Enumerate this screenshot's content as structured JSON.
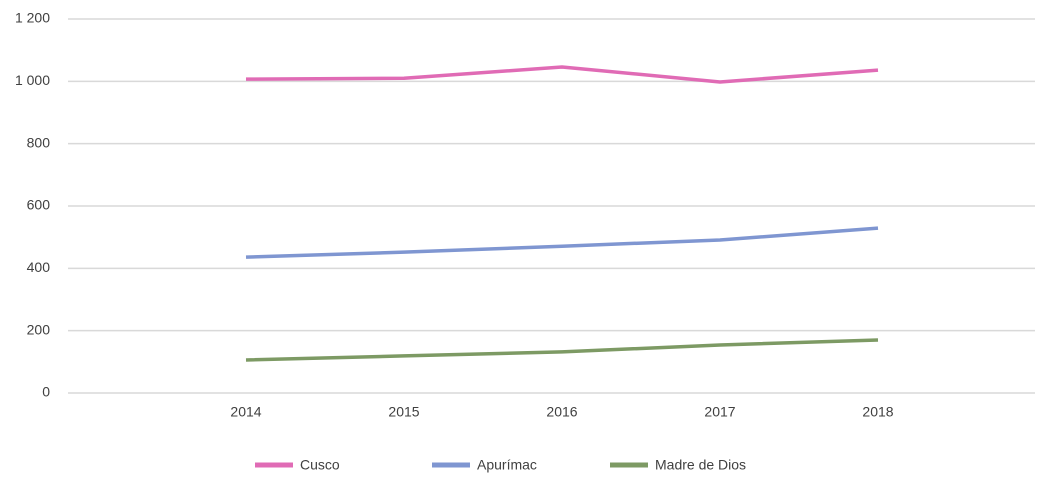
{
  "chart_data": {
    "type": "line",
    "categories": [
      "2014",
      "2015",
      "2016",
      "2017",
      "2018"
    ],
    "series": [
      {
        "name": "Cusco",
        "color": "#e06bb5",
        "values": [
          1007,
          1010,
          1046,
          998,
          1036
        ]
      },
      {
        "name": "Apurímac",
        "color": "#7f96d1",
        "values": [
          436,
          452,
          471,
          491,
          529
        ]
      },
      {
        "name": "Madre de Dios",
        "color": "#7d9a64",
        "values": [
          106,
          119,
          132,
          154,
          170
        ]
      }
    ],
    "ylim": [
      0,
      1200
    ],
    "yticks": [
      0,
      200,
      400,
      600,
      800,
      {
        "value": 1000,
        "label": "1 000"
      },
      {
        "value": 1200,
        "label": "1 200"
      }
    ],
    "grid": true,
    "legend": "bottom"
  }
}
